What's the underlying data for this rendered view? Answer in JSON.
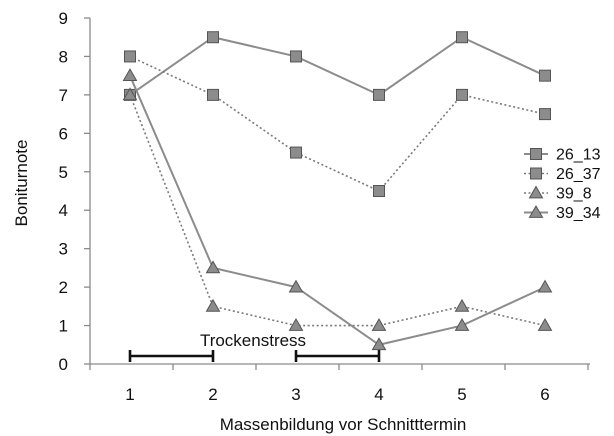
{
  "chart_data": {
    "type": "line",
    "xlabel": "Massenbildung vor Schnitttermin",
    "ylabel": "Boniturnote",
    "x": [
      1,
      2,
      3,
      4,
      5,
      6
    ],
    "xticks": [
      "1",
      "2",
      "3",
      "4",
      "5",
      "6"
    ],
    "ylim": [
      0,
      9
    ],
    "yticks": [
      "0",
      "1",
      "2",
      "3",
      "4",
      "5",
      "6",
      "7",
      "8",
      "9"
    ],
    "grid": false,
    "legend_position": "right",
    "series": [
      {
        "name": "26_13",
        "marker": "square",
        "line": "solid",
        "color": "#8c8c8c",
        "values": [
          7,
          8.5,
          8,
          7,
          8.5,
          7.5
        ]
      },
      {
        "name": "26_37",
        "marker": "square",
        "line": "dotted",
        "color": "#8c8c8c",
        "values": [
          8,
          7,
          5.5,
          4.5,
          7,
          6.5
        ]
      },
      {
        "name": "39_8",
        "marker": "triangle",
        "line": "dotted",
        "color": "#8c8c8c",
        "values": [
          7,
          1.5,
          1,
          1,
          1.5,
          1
        ]
      },
      {
        "name": "39_34",
        "marker": "triangle",
        "line": "solid",
        "color": "#8c8c8c",
        "values": [
          7.5,
          2.5,
          2,
          0.5,
          1,
          2
        ]
      }
    ],
    "annotations": {
      "label": "Trockenstress",
      "periods": [
        [
          1,
          2
        ],
        [
          3,
          4
        ]
      ]
    }
  }
}
